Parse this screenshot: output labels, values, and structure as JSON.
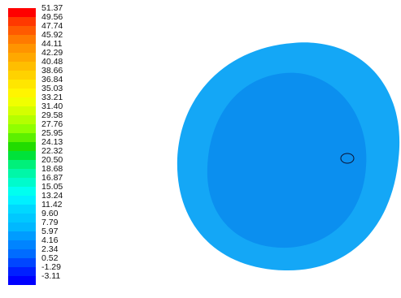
{
  "chart_data": {
    "type": "heatmap",
    "title": "",
    "colorbar": {
      "placement": "left",
      "tick_labels": [
        "51.37",
        "49.56",
        "47.74",
        "45.92",
        "44.11",
        "42.29",
        "40.48",
        "38.66",
        "36.84",
        "35.03",
        "33.21",
        "31.40",
        "29.58",
        "27.76",
        "25.95",
        "24.13",
        "22.32",
        "20.50",
        "18.68",
        "16.87",
        "15.05",
        "13.24",
        "11.42",
        "9.60",
        "7.79",
        "5.97",
        "4.16",
        "2.34",
        "0.52",
        "-1.29",
        "-3.11"
      ],
      "colors": [
        "#ff0000",
        "#ff3800",
        "#ff5a00",
        "#ff7a00",
        "#ff9400",
        "#ffa800",
        "#ffbe00",
        "#ffd200",
        "#ffe600",
        "#fff500",
        "#f0ff00",
        "#d4ff00",
        "#b4ff00",
        "#90ff00",
        "#5cf000",
        "#22dc00",
        "#00e23a",
        "#00f07a",
        "#00f7a8",
        "#00fbcc",
        "#00fff0",
        "#00f0ff",
        "#00d8ff",
        "#00c8ff",
        "#00b8ff",
        "#009cff",
        "#0084ff",
        "#006cff",
        "#0046ff",
        "#0020ff",
        "#0000ff"
      ]
    },
    "field": {
      "shape": "ellipse",
      "outer_region": {
        "value": 7.79,
        "color": "#14a7f6"
      },
      "inner_region": {
        "value": 4.16,
        "color": "#0b8fef"
      },
      "marker": "small-circle"
    }
  }
}
